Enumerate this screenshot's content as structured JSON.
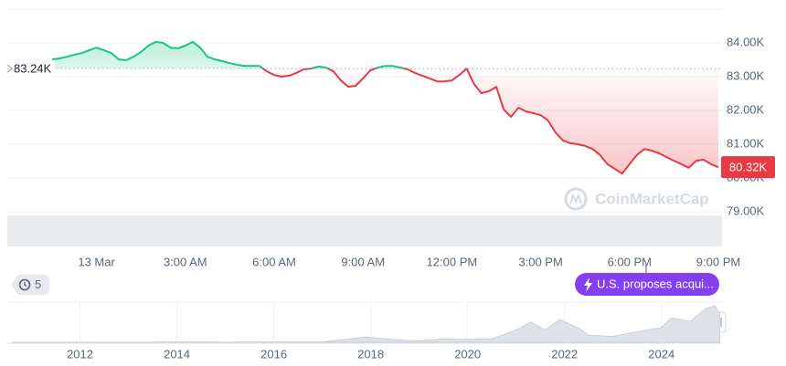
{
  "chart_data": [
    {
      "type": "line",
      "categories": [
        null,
        null,
        null,
        null,
        null,
        null,
        "13 Mar",
        null,
        null,
        null,
        null,
        null,
        null,
        null,
        null,
        null,
        null,
        null,
        "3:00 AM",
        null,
        null,
        null,
        null,
        null,
        null,
        null,
        null,
        null,
        null,
        null,
        "6:00 AM",
        null,
        null,
        null,
        null,
        null,
        null,
        null,
        null,
        null,
        null,
        null,
        "9:00 AM",
        null,
        null,
        null,
        null,
        null,
        null,
        null,
        null,
        null,
        null,
        null,
        "12:00 PM",
        null,
        null,
        null,
        null,
        null,
        null,
        null,
        null,
        null,
        null,
        null,
        "3:00 PM",
        null,
        null,
        null,
        null,
        null,
        null,
        null,
        null,
        null,
        null,
        null,
        "6:00 PM",
        null,
        null,
        null,
        null,
        null,
        null,
        null,
        null,
        null,
        null,
        null,
        "9:00 PM"
      ],
      "values": [
        83510,
        83540,
        83590,
        83650,
        83700,
        83780,
        83860,
        83780,
        83700,
        83510,
        83490,
        83590,
        83730,
        83920,
        84030,
        84000,
        83860,
        83840,
        83920,
        84030,
        83860,
        83590,
        83510,
        83460,
        83400,
        83350,
        83320,
        83320,
        83320,
        83160,
        83050,
        83000,
        83030,
        83110,
        83220,
        83240,
        83300,
        83270,
        83160,
        82890,
        82700,
        82730,
        82950,
        83190,
        83270,
        83320,
        83320,
        83270,
        83220,
        83110,
        83030,
        82950,
        82860,
        82860,
        82890,
        83050,
        83240,
        82780,
        82510,
        82570,
        82700,
        82030,
        81810,
        82080,
        81970,
        81920,
        81860,
        81700,
        81350,
        81110,
        81030,
        81000,
        80950,
        80860,
        80680,
        80410,
        80270,
        80130,
        80410,
        80680,
        80860,
        80810,
        80730,
        80620,
        80510,
        80410,
        80300,
        80510,
        80540,
        80410,
        80320
      ],
      "up_color": "#16c784",
      "down_color": "#ea3943",
      "reference_value": 83240,
      "reference_label": "83.24K",
      "last_label": "80.32K",
      "ylim": [
        78000,
        85000
      ],
      "yticks": [
        {
          "value": 79000,
          "label": "79.00K"
        },
        {
          "value": 80000,
          "label": "80.00K"
        },
        {
          "value": 81000,
          "label": "81.00K"
        },
        {
          "value": 82000,
          "label": "82.00K"
        },
        {
          "value": 83000,
          "label": "83.00K"
        },
        {
          "value": 84000,
          "label": "84.00K"
        }
      ],
      "grid": true,
      "watermark": "CoinMarketCap"
    },
    {
      "type": "area",
      "x": [
        2010.6,
        2011,
        2012,
        2013,
        2013.9,
        2014.5,
        2015,
        2016,
        2016.5,
        2017,
        2017.9,
        2018.5,
        2019,
        2019.5,
        2020,
        2020.5,
        2021,
        2021.3,
        2021.6,
        2021.9,
        2022.3,
        2022.5,
        2023,
        2023.5,
        2024,
        2024.2,
        2024.6,
        2024.9,
        2025.1,
        2025.2
      ],
      "values": [
        5,
        10,
        10,
        100,
        900,
        500,
        300,
        400,
        700,
        1000,
        15000,
        7000,
        4000,
        10000,
        8000,
        10000,
        35000,
        58000,
        35000,
        65000,
        40000,
        20000,
        17000,
        30000,
        42000,
        70000,
        60000,
        95000,
        105000,
        83000
      ],
      "xlim": [
        2010.5,
        2025.25
      ],
      "ylim": [
        0,
        110000
      ],
      "xticks": [
        2012,
        2014,
        2016,
        2018,
        2020,
        2022,
        2024
      ],
      "color": "#dfe3e9"
    }
  ],
  "annotations": {
    "history_count": 5,
    "news": "U.S. proposes acqui..."
  }
}
